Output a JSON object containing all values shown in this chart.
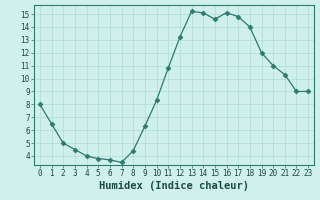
{
  "x": [
    0,
    1,
    2,
    3,
    4,
    5,
    6,
    7,
    8,
    9,
    10,
    11,
    12,
    13,
    14,
    15,
    16,
    17,
    18,
    19,
    20,
    21,
    22,
    23
  ],
  "y": [
    8.0,
    6.5,
    5.0,
    4.5,
    4.0,
    3.8,
    3.7,
    3.5,
    4.4,
    6.3,
    8.3,
    10.8,
    13.2,
    15.2,
    15.1,
    14.6,
    15.1,
    14.8,
    14.0,
    12.0,
    11.0,
    10.3,
    9.0,
    9.0
  ],
  "xlabel": "Humidex (Indice chaleur)",
  "line_color": "#2d7a6e",
  "marker": "D",
  "marker_size": 2.5,
  "bg_color": "#cff0eb",
  "grid_color": "#b0ddd6",
  "xlim": [
    -0.5,
    23.5
  ],
  "ylim": [
    3.3,
    15.7
  ],
  "yticks": [
    4,
    5,
    6,
    7,
    8,
    9,
    10,
    11,
    12,
    13,
    14,
    15
  ],
  "xticks": [
    0,
    1,
    2,
    3,
    4,
    5,
    6,
    7,
    8,
    9,
    10,
    11,
    12,
    13,
    14,
    15,
    16,
    17,
    18,
    19,
    20,
    21,
    22,
    23
  ],
  "tick_label_fontsize": 5.5,
  "xlabel_fontsize": 7.5
}
